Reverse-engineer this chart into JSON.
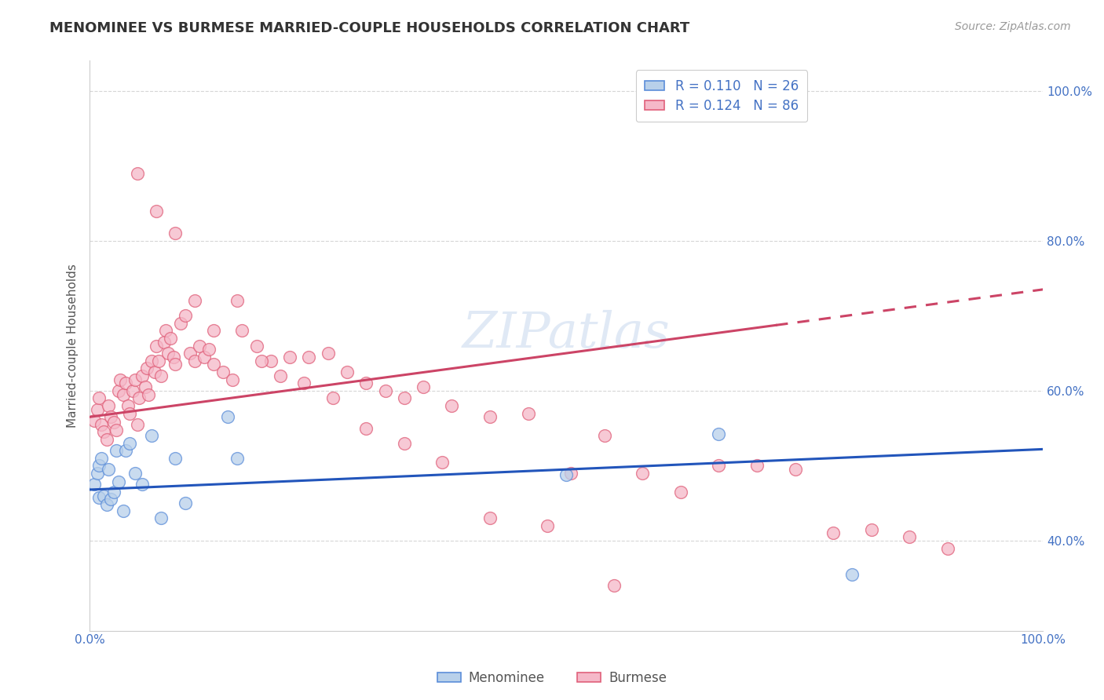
{
  "title": "MENOMINEE VS BURMESE MARRIED-COUPLE HOUSEHOLDS CORRELATION CHART",
  "source": "Source: ZipAtlas.com",
  "ylabel": "Married-couple Households",
  "menominee_R": "0.110",
  "menominee_N": "26",
  "burmese_R": "0.124",
  "burmese_N": "86",
  "menominee_color": "#b8d0ea",
  "burmese_color": "#f5b8c8",
  "menominee_edge_color": "#5b8dd9",
  "burmese_edge_color": "#e0607a",
  "menominee_line_color": "#2255bb",
  "burmese_line_color": "#cc4466",
  "grid_color": "#cccccc",
  "watermark": "ZIPatlas",
  "title_color": "#333333",
  "source_color": "#999999",
  "ylabel_color": "#555555",
  "tick_color": "#4472c4",
  "xlim": [
    0.0,
    1.0
  ],
  "ylim_low": 0.28,
  "ylim_high": 1.04,
  "yticks": [
    0.4,
    0.6,
    0.8,
    1.0
  ],
  "ytick_labels": [
    "40.0%",
    "60.0%",
    "80.0%",
    "100.0%"
  ],
  "xticks": [
    0.0,
    1.0
  ],
  "xtick_labels": [
    "0.0%",
    "100.0%"
  ],
  "men_line_x0": 0.0,
  "men_line_y0": 0.468,
  "men_line_x1": 1.0,
  "men_line_y1": 0.522,
  "bur_line_x0": 0.0,
  "bur_line_y0": 0.565,
  "bur_line_x1": 1.0,
  "bur_line_y1": 0.735,
  "bur_line_solid_end": 0.72,
  "menominee_x": [
    0.005,
    0.008,
    0.01,
    0.01,
    0.012,
    0.015,
    0.018,
    0.02,
    0.022,
    0.025,
    0.028,
    0.03,
    0.035,
    0.038,
    0.042,
    0.048,
    0.055,
    0.065,
    0.075,
    0.09,
    0.1,
    0.145,
    0.155,
    0.5,
    0.66,
    0.8
  ],
  "menominee_y": [
    0.475,
    0.49,
    0.458,
    0.5,
    0.51,
    0.46,
    0.448,
    0.495,
    0.455,
    0.465,
    0.52,
    0.478,
    0.44,
    0.52,
    0.53,
    0.49,
    0.475,
    0.54,
    0.43,
    0.51,
    0.45,
    0.565,
    0.51,
    0.488,
    0.542,
    0.355
  ],
  "burmese_x": [
    0.005,
    0.008,
    0.01,
    0.012,
    0.015,
    0.018,
    0.02,
    0.022,
    0.025,
    0.028,
    0.03,
    0.032,
    0.035,
    0.038,
    0.04,
    0.042,
    0.045,
    0.048,
    0.05,
    0.052,
    0.055,
    0.058,
    0.06,
    0.062,
    0.065,
    0.068,
    0.07,
    0.072,
    0.075,
    0.078,
    0.08,
    0.082,
    0.085,
    0.088,
    0.09,
    0.095,
    0.1,
    0.105,
    0.11,
    0.115,
    0.12,
    0.125,
    0.13,
    0.14,
    0.15,
    0.16,
    0.175,
    0.19,
    0.21,
    0.23,
    0.25,
    0.27,
    0.29,
    0.31,
    0.33,
    0.35,
    0.38,
    0.42,
    0.46,
    0.505,
    0.54,
    0.58,
    0.62,
    0.66,
    0.7,
    0.74,
    0.78,
    0.82,
    0.86,
    0.9,
    0.05,
    0.07,
    0.09,
    0.11,
    0.13,
    0.155,
    0.18,
    0.2,
    0.225,
    0.255,
    0.29,
    0.33,
    0.37,
    0.42,
    0.48,
    0.55
  ],
  "burmese_y": [
    0.56,
    0.575,
    0.59,
    0.555,
    0.545,
    0.535,
    0.58,
    0.565,
    0.558,
    0.548,
    0.6,
    0.615,
    0.595,
    0.61,
    0.58,
    0.57,
    0.6,
    0.615,
    0.555,
    0.59,
    0.62,
    0.605,
    0.63,
    0.595,
    0.64,
    0.625,
    0.66,
    0.64,
    0.62,
    0.665,
    0.68,
    0.65,
    0.67,
    0.645,
    0.635,
    0.69,
    0.7,
    0.65,
    0.64,
    0.66,
    0.645,
    0.655,
    0.635,
    0.625,
    0.615,
    0.68,
    0.66,
    0.64,
    0.645,
    0.645,
    0.65,
    0.625,
    0.61,
    0.6,
    0.59,
    0.605,
    0.58,
    0.565,
    0.57,
    0.49,
    0.54,
    0.49,
    0.465,
    0.5,
    0.5,
    0.495,
    0.41,
    0.415,
    0.405,
    0.39,
    0.89,
    0.84,
    0.81,
    0.72,
    0.68,
    0.72,
    0.64,
    0.62,
    0.61,
    0.59,
    0.55,
    0.53,
    0.505,
    0.43,
    0.42,
    0.34
  ]
}
